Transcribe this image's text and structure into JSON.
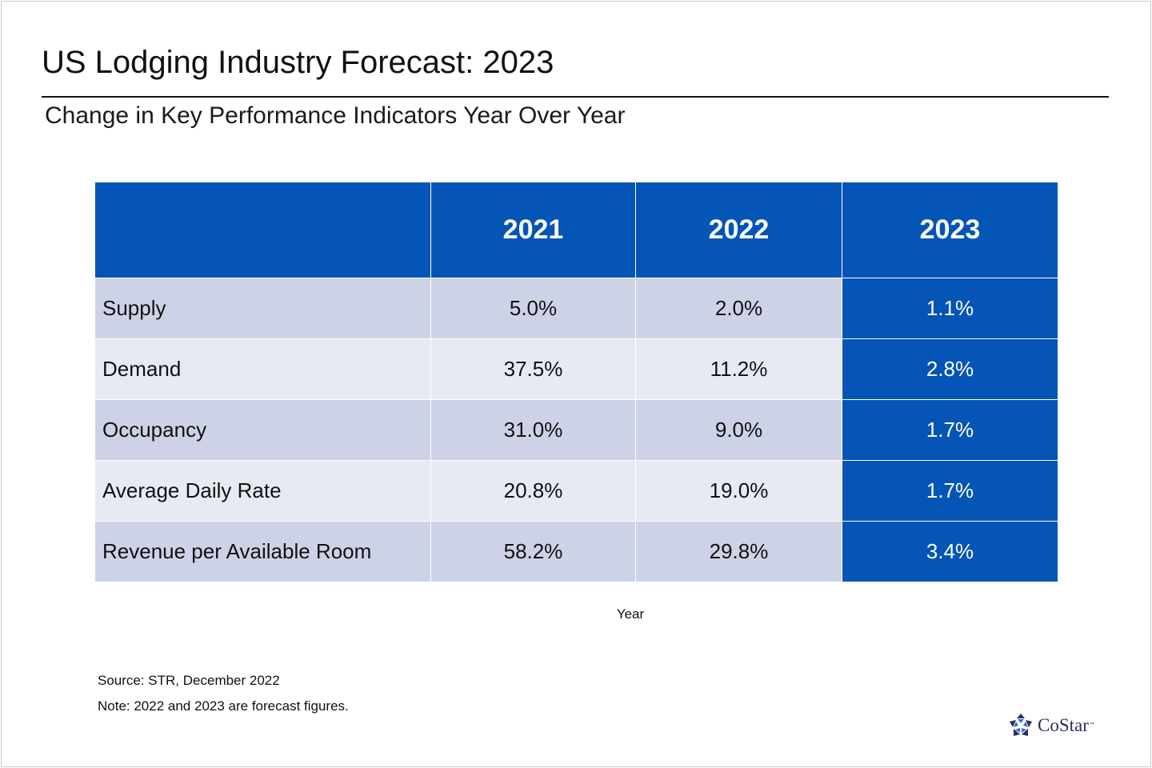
{
  "title": "US Lodging Industry Forecast: 2023",
  "subtitle": "Change in Key Performance Indicators Year Over Year",
  "chart_data": {
    "type": "table",
    "columns": [
      "",
      "2021",
      "2022",
      "2023"
    ],
    "highlight_column": "2023",
    "rows": [
      {
        "label": "Supply",
        "values": [
          "5.0%",
          "2.0%",
          "1.1%"
        ]
      },
      {
        "label": "Demand",
        "values": [
          "37.5%",
          "11.2%",
          "2.8%"
        ]
      },
      {
        "label": "Occupancy",
        "values": [
          "31.0%",
          "9.0%",
          "1.7%"
        ]
      },
      {
        "label": "Average Daily Rate",
        "values": [
          "20.8%",
          "19.0%",
          "1.7%"
        ]
      },
      {
        "label": "Revenue per Available Room",
        "values": [
          "58.2%",
          "29.8%",
          "3.4%"
        ]
      }
    ],
    "xlabel": "Year"
  },
  "source": "Source: STR, December 2022",
  "note": "Note: 2022 and 2023 are forecast figures.",
  "logo": {
    "text": "CoStar",
    "tm": "™"
  },
  "colors": {
    "header_blue": "#0555b6",
    "row_band_dark": "#cdd2e6",
    "row_band_light": "#e8eaf3"
  }
}
